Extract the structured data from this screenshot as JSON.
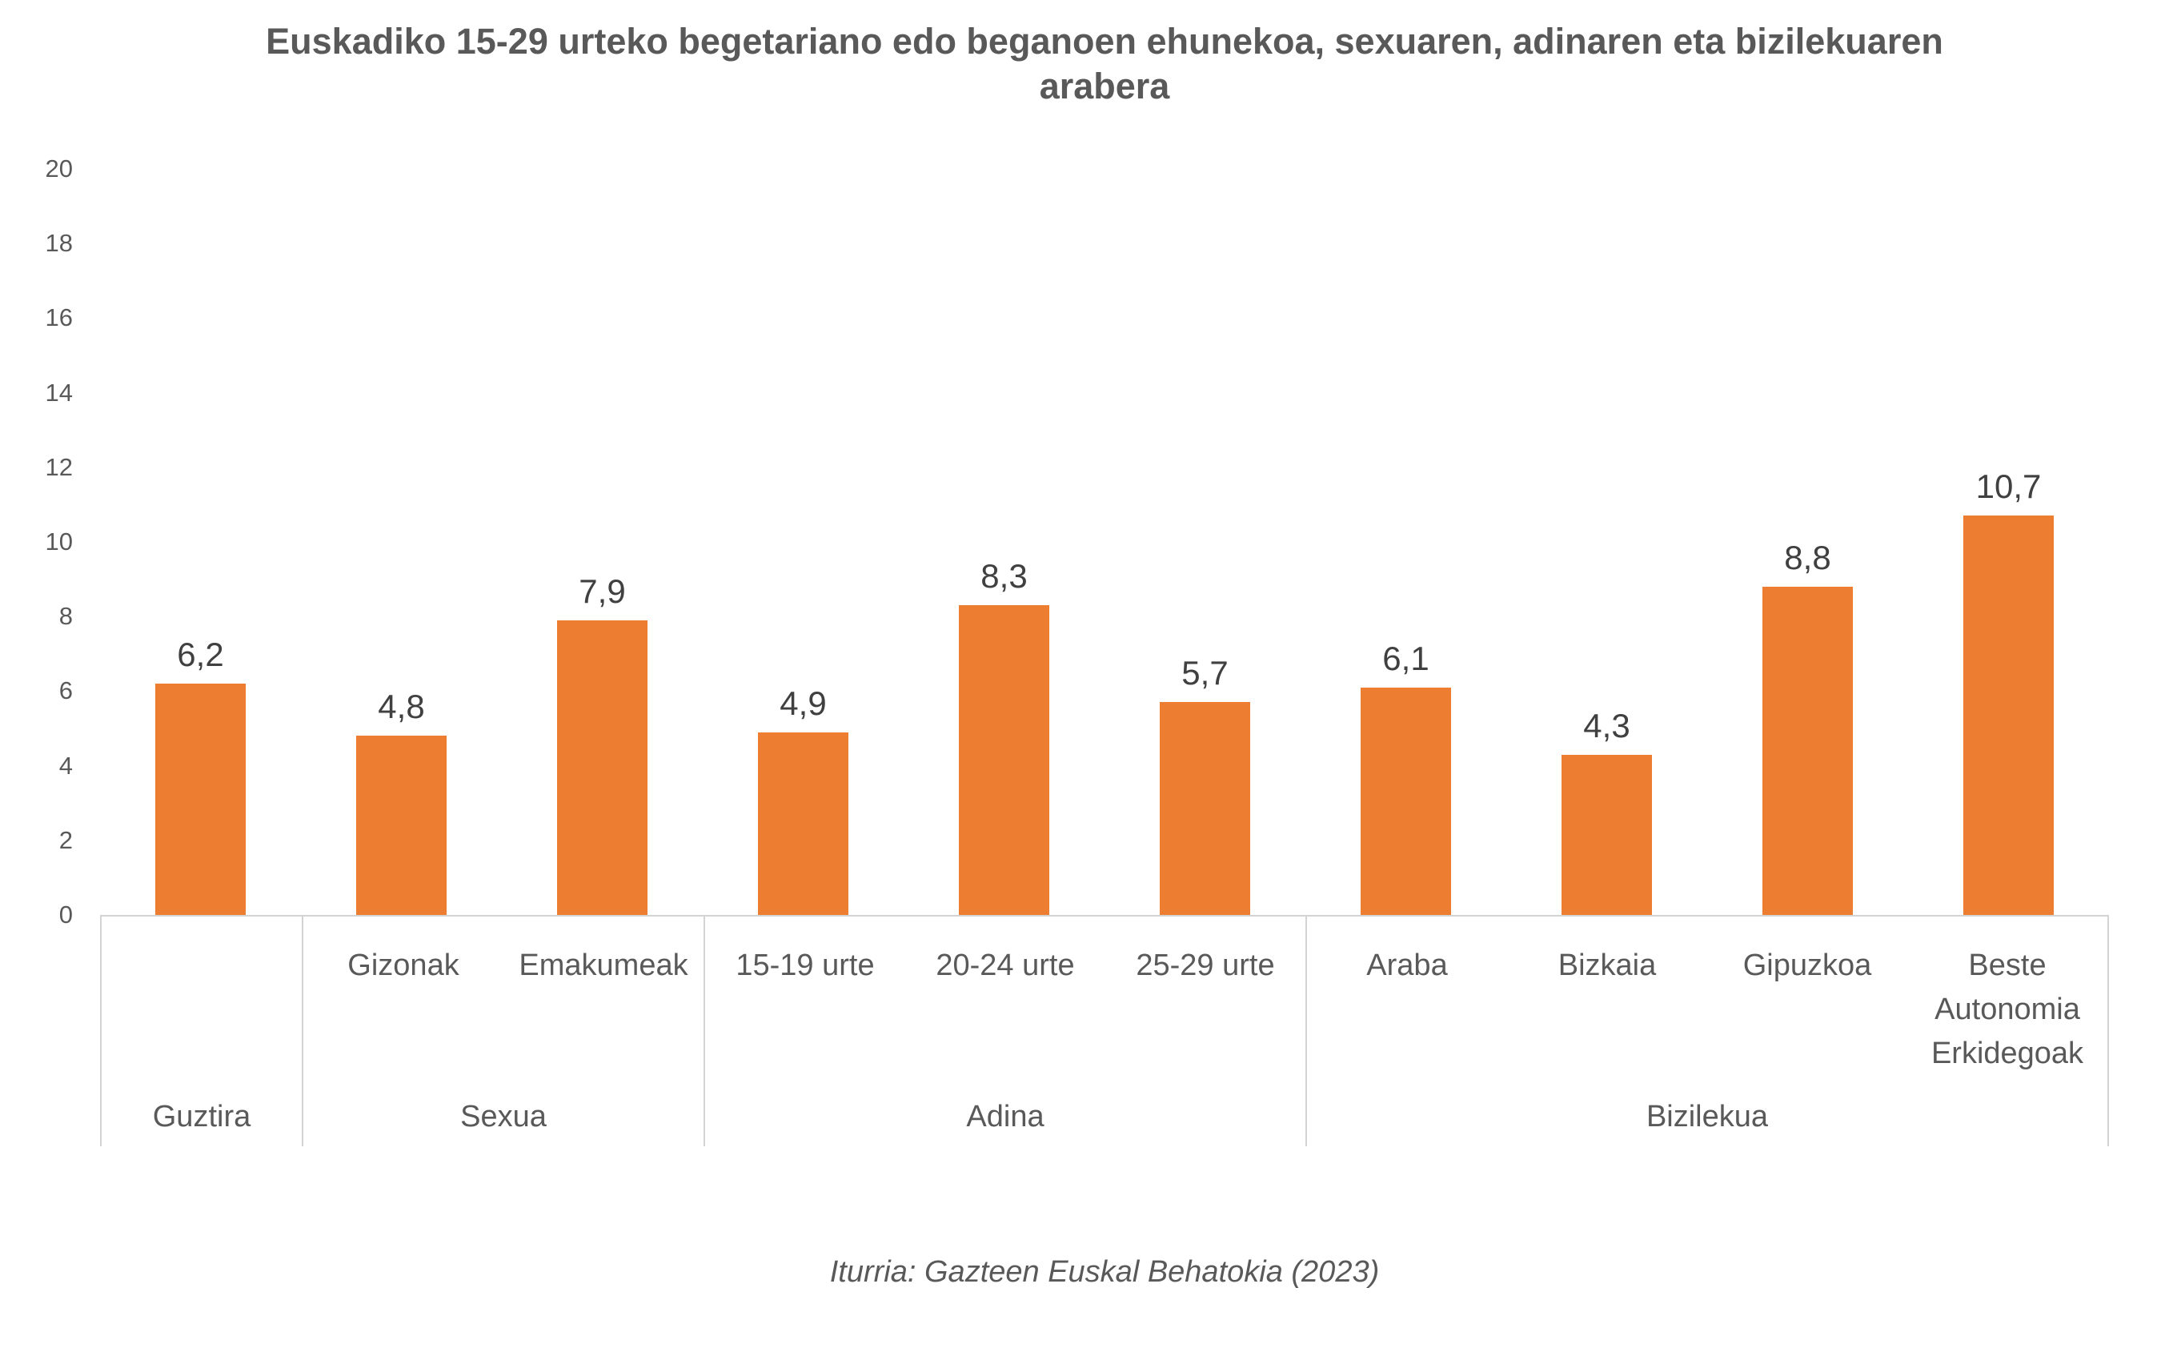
{
  "source": "Iturria: Gazteen Euskal Behatokia (2023)",
  "colors": {
    "bar": "#ED7D31",
    "axis_line": "#D3D3D3",
    "axis_text": "#595959",
    "value_label_text": "#404040",
    "title_text": "#595959",
    "background": "#FFFFFF"
  },
  "chart_data": {
    "type": "bar",
    "title": "Euskadiko 15-29 urteko begetariano edo beganoen ehunekoa, sexuaren, adinaren eta bizilekuaren arabera",
    "xlabel": "",
    "ylabel": "",
    "ylim": [
      0,
      20
    ],
    "yticks": [
      0,
      2,
      4,
      6,
      8,
      10,
      12,
      14,
      16,
      18,
      20
    ],
    "grid": false,
    "legend": null,
    "decimal_separator": ",",
    "groups": [
      {
        "label": "Guztira",
        "categories": [
          ""
        ],
        "values": [
          6.2
        ],
        "value_labels": [
          "6,2"
        ]
      },
      {
        "label": "Sexua",
        "categories": [
          "Gizonak",
          "Emakumeak"
        ],
        "values": [
          4.8,
          7.9
        ],
        "value_labels": [
          "4,8",
          "7,9"
        ]
      },
      {
        "label": "Adina",
        "categories": [
          "15-19 urte",
          "20-24 urte",
          "25-29 urte"
        ],
        "values": [
          4.9,
          8.3,
          5.7
        ],
        "value_labels": [
          "4,9",
          "8,3",
          "5,7"
        ]
      },
      {
        "label": "Bizilekua",
        "categories": [
          "Araba",
          "Bizkaia",
          "Gipuzkoa",
          "Beste Autonomia Erkidegoak"
        ],
        "values": [
          6.1,
          4.3,
          8.8,
          10.7
        ],
        "value_labels": [
          "6,1",
          "4,3",
          "8,8",
          "10,7"
        ]
      }
    ]
  }
}
